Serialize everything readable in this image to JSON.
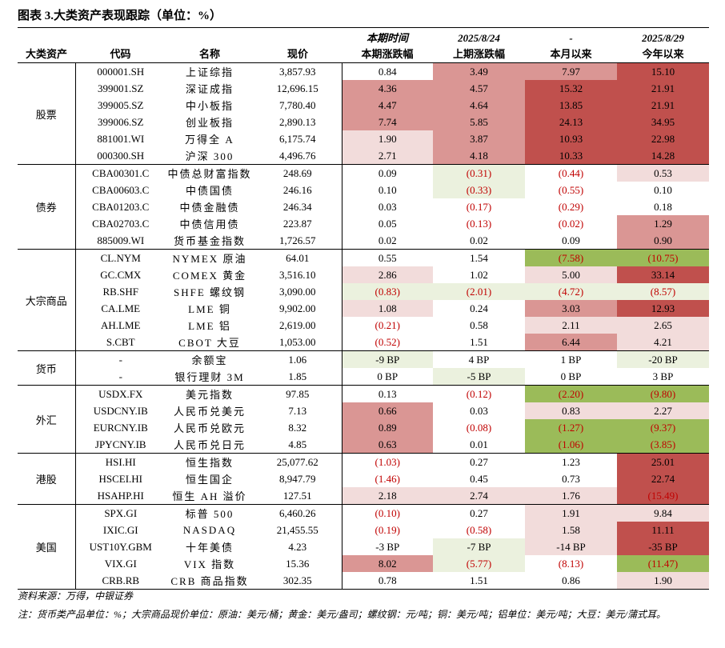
{
  "title": "图表 3.大类资产表现跟踪（单位：%）",
  "header": {
    "row1": [
      "",
      "",
      "",
      "",
      "本期时间",
      "2025/8/24",
      "-",
      "2025/8/29"
    ],
    "row2": [
      "大类资产",
      "代码",
      "名称",
      "现价",
      "本期涨跌幅",
      "上期涨跌幅",
      "本月以来",
      "今年以来"
    ]
  },
  "colors": {
    "red_dark": "#c0504d",
    "red_mid": "#da9694",
    "red_light": "#f2dcdb",
    "green_dark": "#9bbb59",
    "green_light": "#ebf1de",
    "negative_text": "#c00000"
  },
  "groups": [
    {
      "name": "股票",
      "rows": [
        {
          "code": "000001.SH",
          "name": "上证综指",
          "price": "3,857.93",
          "cur": "0.84",
          "prev": "3.49",
          "mtd": "7.97",
          "ytd": "15.10"
        },
        {
          "code": "399001.SZ",
          "name": "深证成指",
          "price": "12,696.15",
          "cur": "4.36",
          "prev": "4.57",
          "mtd": "15.32",
          "ytd": "21.91"
        },
        {
          "code": "399005.SZ",
          "name": "中小板指",
          "price": "7,780.40",
          "cur": "4.47",
          "prev": "4.64",
          "mtd": "13.85",
          "ytd": "21.91"
        },
        {
          "code": "399006.SZ",
          "name": "创业板指",
          "price": "2,890.13",
          "cur": "7.74",
          "prev": "5.85",
          "mtd": "24.13",
          "ytd": "34.95"
        },
        {
          "code": "881001.WI",
          "name": "万得全 A",
          "price": "6,175.74",
          "cur": "1.90",
          "prev": "3.87",
          "mtd": "10.93",
          "ytd": "22.98"
        },
        {
          "code": "000300.SH",
          "name": "沪深 300",
          "price": "4,496.76",
          "cur": "2.71",
          "prev": "4.18",
          "mtd": "10.33",
          "ytd": "14.28"
        }
      ]
    },
    {
      "name": "债券",
      "rows": [
        {
          "code": "CBA00301.C",
          "name": "中债总财富指数",
          "price": "248.69",
          "cur": "0.09",
          "prev": "(0.31)",
          "mtd": "(0.44)",
          "ytd": "0.53"
        },
        {
          "code": "CBA00603.C",
          "name": "中债国债",
          "price": "246.16",
          "cur": "0.10",
          "prev": "(0.33)",
          "mtd": "(0.55)",
          "ytd": "0.10"
        },
        {
          "code": "CBA01203.C",
          "name": "中债金融债",
          "price": "246.34",
          "cur": "0.03",
          "prev": "(0.17)",
          "mtd": "(0.29)",
          "ytd": "0.18"
        },
        {
          "code": "CBA02703.C",
          "name": "中债信用债",
          "price": "223.87",
          "cur": "0.05",
          "prev": "(0.13)",
          "mtd": "(0.02)",
          "ytd": "1.29"
        },
        {
          "code": "885009.WI",
          "name": "货币基金指数",
          "price": "1,726.57",
          "cur": "0.02",
          "prev": "0.02",
          "mtd": "0.09",
          "ytd": "0.90"
        }
      ]
    },
    {
      "name": "大宗商品",
      "rows": [
        {
          "code": "CL.NYM",
          "name": "NYMEX 原油",
          "price": "64.01",
          "cur": "0.55",
          "prev": "1.54",
          "mtd": "(7.58)",
          "ytd": "(10.75)"
        },
        {
          "code": "GC.CMX",
          "name": "COMEX 黄金",
          "price": "3,516.10",
          "cur": "2.86",
          "prev": "1.02",
          "mtd": "5.00",
          "ytd": "33.14"
        },
        {
          "code": "RB.SHF",
          "name": "SHFE 螺纹钢",
          "price": "3,090.00",
          "cur": "(0.83)",
          "prev": "(2.01)",
          "mtd": "(4.72)",
          "ytd": "(8.57)"
        },
        {
          "code": "CA.LME",
          "name": "LME 铜",
          "price": "9,902.00",
          "cur": "1.08",
          "prev": "0.24",
          "mtd": "3.03",
          "ytd": "12.93"
        },
        {
          "code": "AH.LME",
          "name": "LME 铝",
          "price": "2,619.00",
          "cur": "(0.21)",
          "prev": "0.58",
          "mtd": "2.11",
          "ytd": "2.65"
        },
        {
          "code": "S.CBT",
          "name": "CBOT 大豆",
          "price": "1,053.00",
          "cur": "(0.52)",
          "prev": "1.51",
          "mtd": "6.44",
          "ytd": "4.21"
        }
      ]
    },
    {
      "name": "货币",
      "rows": [
        {
          "code": "-",
          "name": "余额宝",
          "price": "1.06",
          "cur": "-9 BP",
          "prev": "4 BP",
          "mtd": "1 BP",
          "ytd": "-20 BP"
        },
        {
          "code": "-",
          "name": "银行理财 3M",
          "price": "1.85",
          "cur": "0 BP",
          "prev": "-5 BP",
          "mtd": "0 BP",
          "ytd": "3 BP"
        }
      ]
    },
    {
      "name": "外汇",
      "rows": [
        {
          "code": "USDX.FX",
          "name": "美元指数",
          "price": "97.85",
          "cur": "0.13",
          "prev": "(0.12)",
          "mtd": "(2.20)",
          "ytd": "(9.80)"
        },
        {
          "code": "USDCNY.IB",
          "name": "人民币兑美元",
          "price": "7.13",
          "cur": "0.66",
          "prev": "0.03",
          "mtd": "0.83",
          "ytd": "2.27"
        },
        {
          "code": "EURCNY.IB",
          "name": "人民币兑欧元",
          "price": "8.32",
          "cur": "0.89",
          "prev": "(0.08)",
          "mtd": "(1.27)",
          "ytd": "(9.37)"
        },
        {
          "code": "JPYCNY.IB",
          "name": "人民币兑日元",
          "price": "4.85",
          "cur": "0.63",
          "prev": "0.01",
          "mtd": "(1.06)",
          "ytd": "(3.85)"
        }
      ]
    },
    {
      "name": "港股",
      "rows": [
        {
          "code": "HSI.HI",
          "name": "恒生指数",
          "price": "25,077.62",
          "cur": "(1.03)",
          "prev": "0.27",
          "mtd": "1.23",
          "ytd": "25.01"
        },
        {
          "code": "HSCEI.HI",
          "name": "恒生国企",
          "price": "8,947.79",
          "cur": "(1.46)",
          "prev": "0.45",
          "mtd": "0.73",
          "ytd": "22.74"
        },
        {
          "code": "HSAHP.HI",
          "name": "恒生 AH 溢价",
          "price": "127.51",
          "cur": "2.18",
          "prev": "2.74",
          "mtd": "1.76",
          "ytd": "(15.49)"
        }
      ]
    },
    {
      "name": "美国",
      "rows": [
        {
          "code": "SPX.GI",
          "name": "标普 500",
          "price": "6,460.26",
          "cur": "(0.10)",
          "prev": "0.27",
          "mtd": "1.91",
          "ytd": "9.84"
        },
        {
          "code": "IXIC.GI",
          "name": "NASDAQ",
          "price": "21,455.55",
          "cur": "(0.19)",
          "prev": "(0.58)",
          "mtd": "1.58",
          "ytd": "11.11"
        },
        {
          "code": "UST10Y.GBM",
          "name": "十年美债",
          "price": "4.23",
          "cur": "-3 BP",
          "prev": "-7 BP",
          "mtd": "-14 BP",
          "ytd": "-35 BP"
        },
        {
          "code": "VIX.GI",
          "name": "VIX 指数",
          "price": "15.36",
          "cur": "8.02",
          "prev": "(5.77)",
          "mtd": "(8.13)",
          "ytd": "(11.47)"
        },
        {
          "code": "CRB.RB",
          "name": "CRB 商品指数",
          "price": "302.35",
          "cur": "0.78",
          "prev": "1.51",
          "mtd": "0.86",
          "ytd": "1.90"
        }
      ]
    }
  ],
  "fills": [
    [
      "",
      "red_mid",
      "red_mid",
      "red_dark"
    ],
    [
      "red_mid",
      "red_mid",
      "red_dark",
      "red_dark"
    ],
    [
      "red_mid",
      "red_mid",
      "red_dark",
      "red_dark"
    ],
    [
      "red_mid",
      "red_mid",
      "red_dark",
      "red_dark"
    ],
    [
      "red_light",
      "red_mid",
      "red_dark",
      "red_dark"
    ],
    [
      "red_light",
      "red_mid",
      "red_dark",
      "red_dark"
    ],
    [
      "",
      "green_light",
      "",
      "red_light"
    ],
    [
      "",
      "green_light",
      "",
      ""
    ],
    [
      "",
      "",
      "",
      ""
    ],
    [
      "",
      "",
      "",
      "red_mid"
    ],
    [
      "",
      "",
      "",
      "red_mid"
    ],
    [
      "",
      "",
      "green_dark",
      "green_dark"
    ],
    [
      "red_light",
      "",
      "red_light",
      "red_dark"
    ],
    [
      "green_light",
      "green_light",
      "green_light",
      "green_light"
    ],
    [
      "red_light",
      "",
      "red_mid",
      "red_dark"
    ],
    [
      "",
      "",
      "red_light",
      "red_light"
    ],
    [
      "",
      "",
      "red_mid",
      "red_light"
    ],
    [
      "green_light",
      "",
      "",
      "green_light"
    ],
    [
      "",
      "green_light",
      "",
      ""
    ],
    [
      "",
      "",
      "green_dark",
      "green_dark"
    ],
    [
      "red_mid",
      "",
      "red_light",
      "red_light"
    ],
    [
      "red_mid",
      "",
      "green_dark",
      "green_dark"
    ],
    [
      "red_mid",
      "",
      "green_dark",
      "green_dark"
    ],
    [
      "",
      "",
      "",
      "red_dark"
    ],
    [
      "",
      "",
      "",
      "red_dark"
    ],
    [
      "red_light",
      "red_light",
      "red_light",
      "red_dark"
    ],
    [
      "",
      "",
      "red_light",
      "red_light"
    ],
    [
      "",
      "",
      "red_light",
      "red_dark"
    ],
    [
      "",
      "green_light",
      "red_light",
      "red_dark"
    ],
    [
      "red_mid",
      "green_light",
      "",
      "green_dark"
    ],
    [
      "",
      "",
      "",
      "red_light"
    ]
  ],
  "source": "资料来源：万得，中银证券",
  "note": "注：货币类产品单位：%；大宗商品现价单位：原油：美元/桶；黄金：美元/盎司；螺纹钢：元/吨；铜：美元/吨；铝单位：美元/吨；大豆：美元/蒲式耳。"
}
